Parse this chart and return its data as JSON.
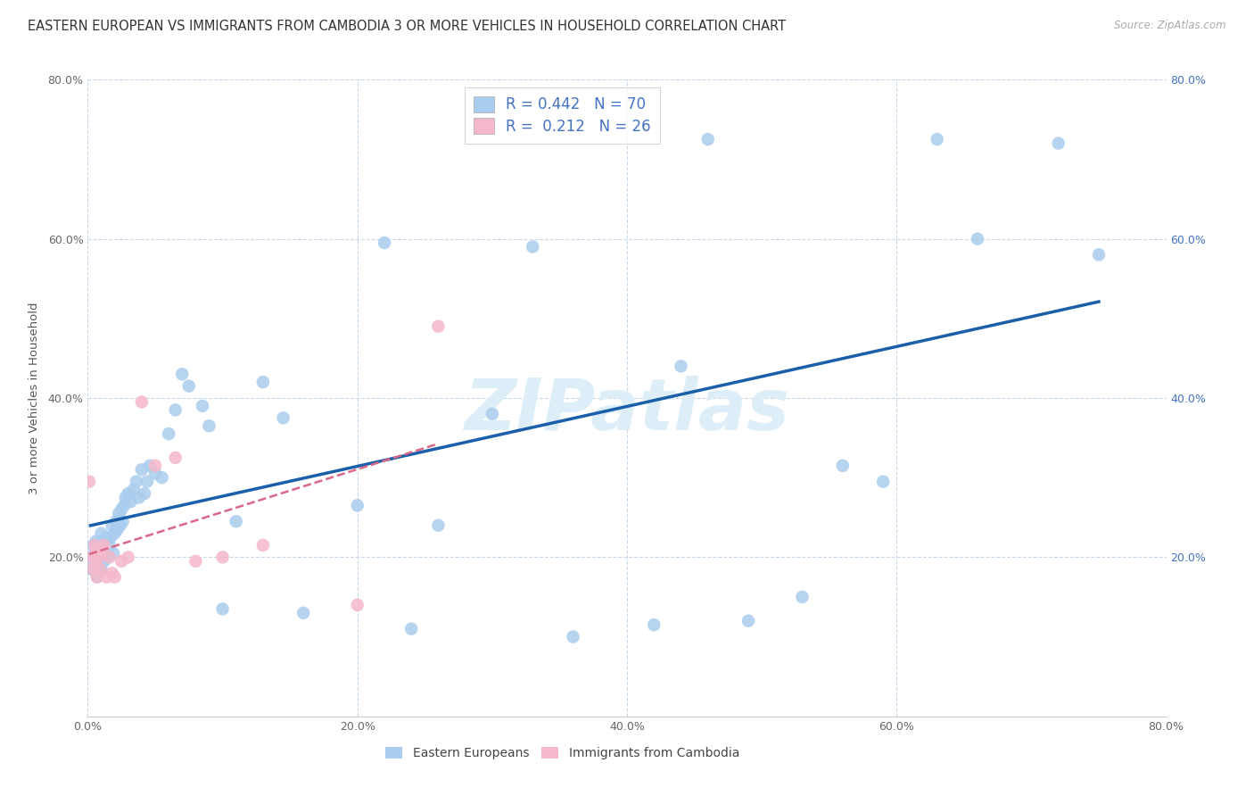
{
  "title": "EASTERN EUROPEAN VS IMMIGRANTS FROM CAMBODIA 3 OR MORE VEHICLES IN HOUSEHOLD CORRELATION CHART",
  "source": "Source: ZipAtlas.com",
  "ylabel": "3 or more Vehicles in Household",
  "xlim": [
    0.0,
    0.8
  ],
  "ylim": [
    0.0,
    0.8
  ],
  "xticks": [
    0.0,
    0.2,
    0.4,
    0.6,
    0.8
  ],
  "yticks": [
    0.2,
    0.4,
    0.6,
    0.8
  ],
  "xticklabels": [
    "0.0%",
    "20.0%",
    "40.0%",
    "60.0%",
    "80.0%"
  ],
  "yticklabels": [
    "20.0%",
    "40.0%",
    "60.0%",
    "80.0%"
  ],
  "right_yticks": [
    0.2,
    0.4,
    0.6,
    0.8
  ],
  "right_yticklabels": [
    "20.0%",
    "40.0%",
    "60.0%",
    "80.0%"
  ],
  "legend_label1": "Eastern Europeans",
  "legend_label2": "Immigrants from Cambodia",
  "R1": "0.442",
  "N1": "70",
  "R2": "0.212",
  "N2": "26",
  "color_blue": "#aaccee",
  "color_pink": "#f5b8cb",
  "line_color_blue": "#1a5fa8",
  "line_color_pink": "#d96888",
  "watermark_color": "#ddeef8",
  "background_color": "#ffffff",
  "grid_color": "#c8d8e8",
  "title_fontsize": 10.5,
  "tick_fontsize": 9,
  "legend_fontsize": 12,
  "blue_x": [
    0.002,
    0.003,
    0.004,
    0.005,
    0.006,
    0.006,
    0.007,
    0.007,
    0.008,
    0.009,
    0.01,
    0.01,
    0.011,
    0.012,
    0.013,
    0.014,
    0.015,
    0.016,
    0.017,
    0.018,
    0.019,
    0.02,
    0.021,
    0.022,
    0.023,
    0.024,
    0.025,
    0.026,
    0.027,
    0.028,
    0.03,
    0.032,
    0.034,
    0.036,
    0.038,
    0.04,
    0.042,
    0.044,
    0.046,
    0.05,
    0.055,
    0.06,
    0.065,
    0.07,
    0.075,
    0.085,
    0.09,
    0.1,
    0.11,
    0.13,
    0.145,
    0.16,
    0.2,
    0.22,
    0.24,
    0.26,
    0.3,
    0.33,
    0.36,
    0.42,
    0.44,
    0.46,
    0.49,
    0.53,
    0.56,
    0.59,
    0.63,
    0.66,
    0.72,
    0.75
  ],
  "blue_y": [
    0.185,
    0.2,
    0.215,
    0.205,
    0.195,
    0.22,
    0.175,
    0.215,
    0.2,
    0.21,
    0.185,
    0.23,
    0.22,
    0.195,
    0.21,
    0.225,
    0.2,
    0.215,
    0.225,
    0.24,
    0.205,
    0.23,
    0.245,
    0.235,
    0.255,
    0.24,
    0.26,
    0.245,
    0.265,
    0.275,
    0.28,
    0.27,
    0.285,
    0.295,
    0.275,
    0.31,
    0.28,
    0.295,
    0.315,
    0.305,
    0.3,
    0.355,
    0.385,
    0.43,
    0.415,
    0.39,
    0.365,
    0.135,
    0.245,
    0.42,
    0.375,
    0.13,
    0.265,
    0.595,
    0.11,
    0.24,
    0.38,
    0.59,
    0.1,
    0.115,
    0.44,
    0.725,
    0.12,
    0.15,
    0.315,
    0.295,
    0.725,
    0.6,
    0.72,
    0.58
  ],
  "pink_x": [
    0.001,
    0.003,
    0.004,
    0.005,
    0.006,
    0.007,
    0.007,
    0.008,
    0.009,
    0.01,
    0.011,
    0.012,
    0.014,
    0.016,
    0.018,
    0.02,
    0.025,
    0.03,
    0.04,
    0.05,
    0.065,
    0.08,
    0.1,
    0.13,
    0.2,
    0.26
  ],
  "pink_y": [
    0.295,
    0.2,
    0.185,
    0.215,
    0.195,
    0.175,
    0.21,
    0.2,
    0.185,
    0.205,
    0.21,
    0.215,
    0.175,
    0.2,
    0.18,
    0.175,
    0.195,
    0.2,
    0.395,
    0.315,
    0.325,
    0.195,
    0.2,
    0.215,
    0.14,
    0.49
  ]
}
